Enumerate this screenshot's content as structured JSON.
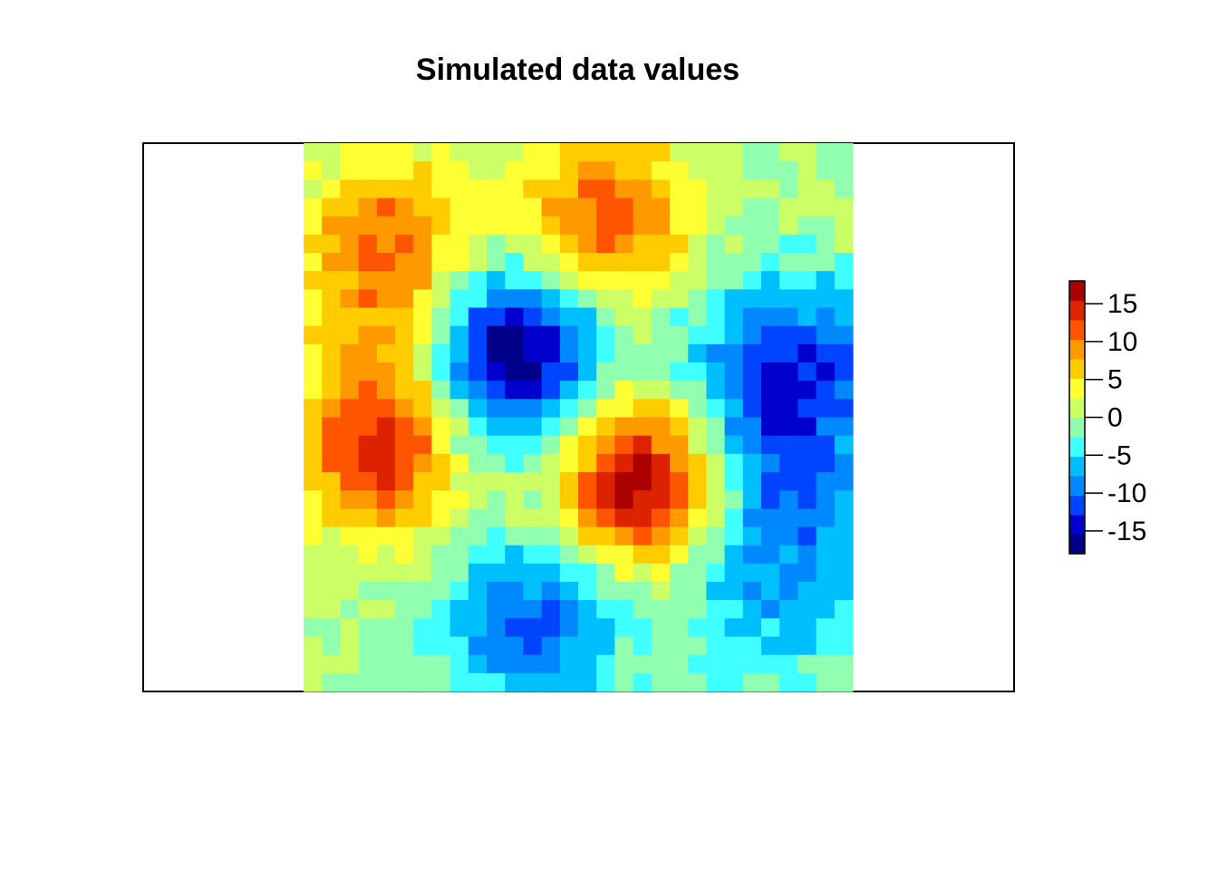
{
  "chart_data": {
    "type": "heatmap",
    "title": "Simulated data values",
    "xlabel": "",
    "ylabel": "",
    "axes_shown": false,
    "grid_size": [
      30,
      30
    ],
    "description_of_field": "spatial grid of simulated values; rows listed top to bottom, columns left to right",
    "colorbar": {
      "range": [
        -18,
        18
      ],
      "ticks": [
        15,
        10,
        5,
        0,
        -5,
        -10,
        -15
      ],
      "tick_labels": [
        "15",
        "10",
        "5",
        "0",
        "-5",
        "-10",
        "-15"
      ],
      "palette": [
        "#00008B",
        "#0000CD",
        "#0044FF",
        "#0088FF",
        "#00BFFF",
        "#40FFFF",
        "#90FFB0",
        "#CCFF66",
        "#FFFF33",
        "#FFCC00",
        "#FF9900",
        "#FF5500",
        "#DD2200",
        "#AA0000"
      ]
    },
    "values": []
  }
}
